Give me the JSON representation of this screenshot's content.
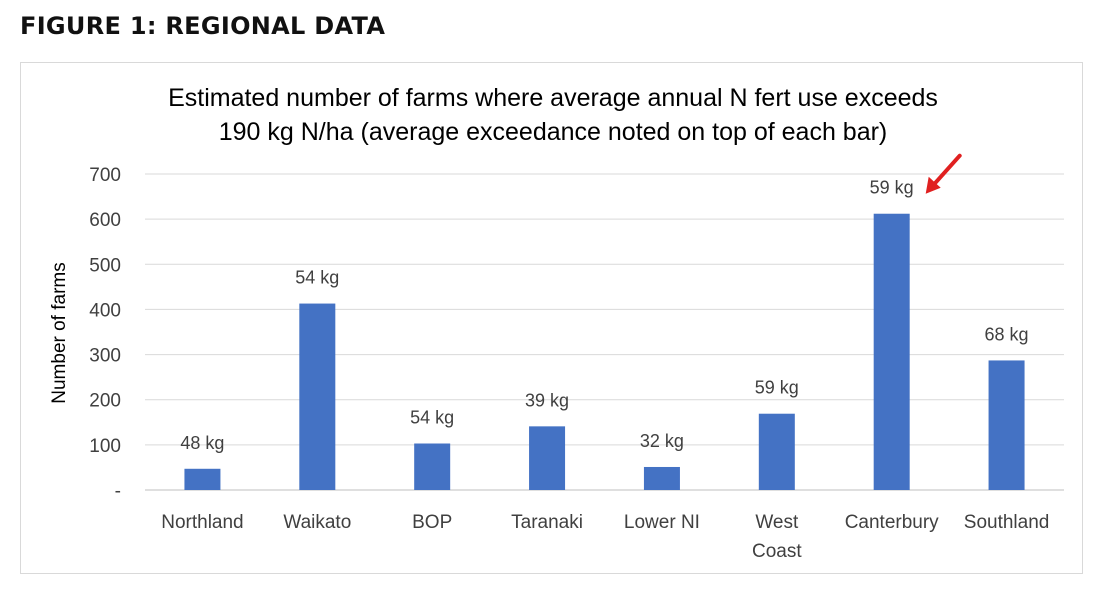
{
  "heading": "FIGURE 1: REGIONAL DATA",
  "chart_data": {
    "type": "bar",
    "title_lines": [
      "Estimated number of farms where average annual N fert use exceeds",
      "190 kg N/ha (average exceedance noted on top of each bar)"
    ],
    "ylabel": "Number of farms",
    "xlabel": "",
    "ylim": [
      0,
      700
    ],
    "yticks": [
      0,
      100,
      200,
      300,
      400,
      500,
      600,
      700
    ],
    "ytick_labels": [
      "-",
      "100",
      "200",
      "300",
      "400",
      "500",
      "600",
      "700"
    ],
    "grid": true,
    "categories": [
      [
        "Northland"
      ],
      [
        "Waikato"
      ],
      [
        "BOP"
      ],
      [
        "Taranaki"
      ],
      [
        "Lower NI"
      ],
      [
        "West",
        "Coast"
      ],
      [
        "Canterbury"
      ],
      [
        "Southland"
      ]
    ],
    "values": [
      47,
      413,
      103,
      141,
      51,
      169,
      612,
      287
    ],
    "data_labels": [
      "48 kg",
      "54 kg",
      "54 kg",
      "39 kg",
      "32 kg",
      "59 kg",
      "59 kg",
      "68 kg"
    ],
    "bar_color": "#4472C4",
    "annotation": {
      "type": "arrow",
      "points_to_category": "Canterbury",
      "color": "#e02020"
    }
  }
}
